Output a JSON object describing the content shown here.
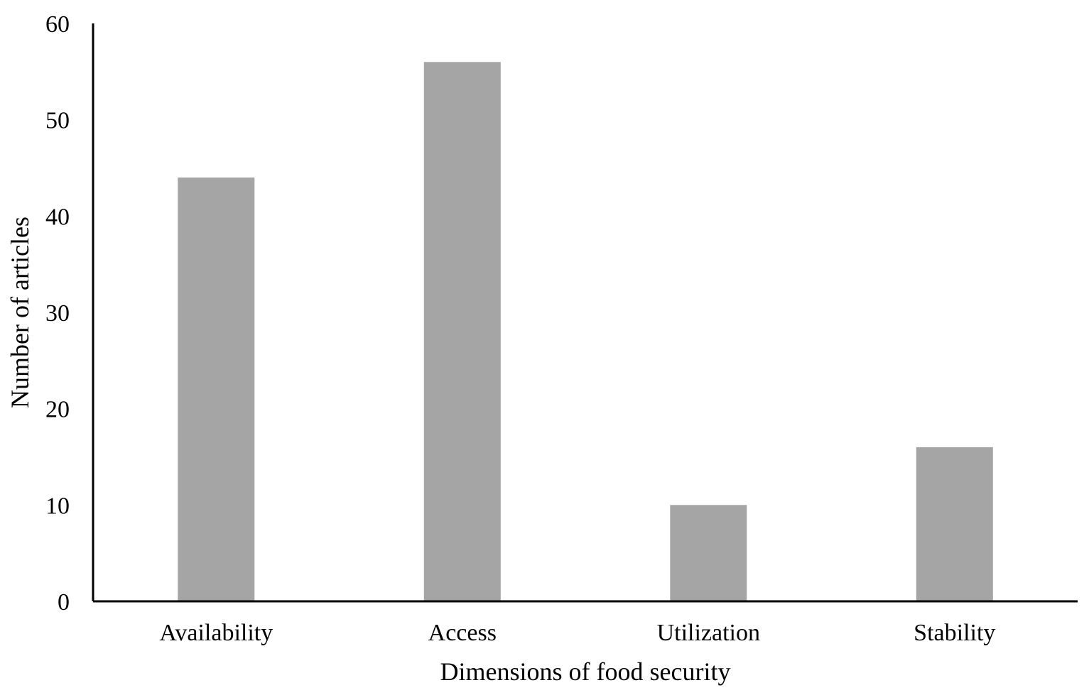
{
  "chart_data": {
    "type": "bar",
    "title": "",
    "xlabel": "Dimensions of food security",
    "ylabel": "Number of articles",
    "categories": [
      "Availability",
      "Access",
      "Utilization",
      "Stability"
    ],
    "values": [
      44,
      56,
      10,
      16
    ],
    "ylim": [
      0,
      60
    ],
    "yticks": [
      0,
      10,
      20,
      30,
      40,
      50,
      60
    ],
    "grid": false,
    "legend": "none",
    "bar_color": "#a5a5a5",
    "axis_color": "#000000"
  }
}
